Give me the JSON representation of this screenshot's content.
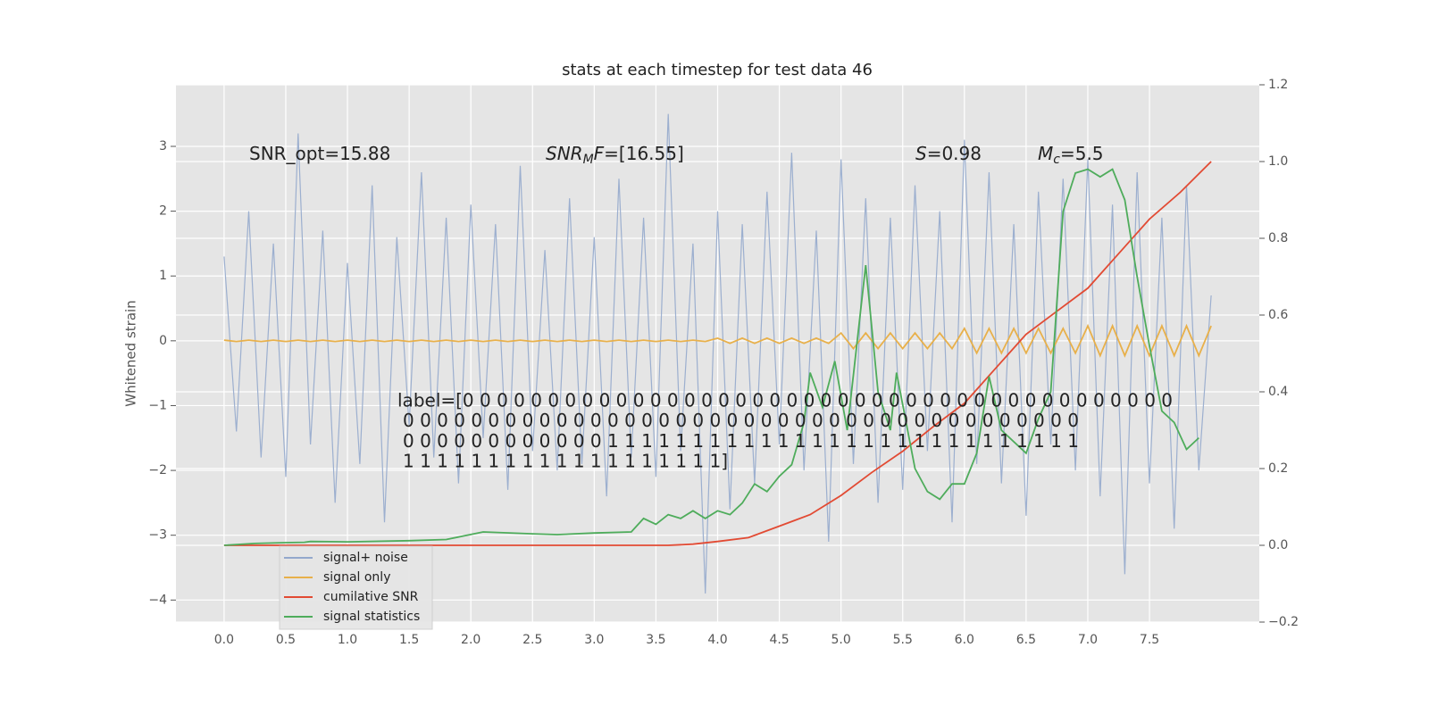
{
  "chart_data": {
    "type": "line",
    "title": "stats at each timestep for test data 46",
    "ylabel": "Whitened strain",
    "xlim": [
      -0.39,
      8.39
    ],
    "ylim": [
      -4.34,
      3.95
    ],
    "y2lim": [
      -0.2,
      1.2
    ],
    "xticks": [
      {
        "value": 0,
        "label": "0.0"
      },
      {
        "value": 0.5,
        "label": "0.5"
      },
      {
        "value": 1,
        "label": "1.0"
      },
      {
        "value": 1.5,
        "label": "1.5"
      },
      {
        "value": 2,
        "label": "2.0"
      },
      {
        "value": 2.5,
        "label": "2.5"
      },
      {
        "value": 3,
        "label": "3.0"
      },
      {
        "value": 3.5,
        "label": "3.5"
      },
      {
        "value": 4,
        "label": "4.0"
      },
      {
        "value": 4.5,
        "label": "4.5"
      },
      {
        "value": 5,
        "label": "5.0"
      },
      {
        "value": 5.5,
        "label": "5.5"
      },
      {
        "value": 6,
        "label": "6.0"
      },
      {
        "value": 6.5,
        "label": "6.5"
      },
      {
        "value": 7,
        "label": "7.0"
      },
      {
        "value": 7.5,
        "label": "7.5"
      }
    ],
    "yticks": [
      {
        "value": -4,
        "label": "−4"
      },
      {
        "value": -3,
        "label": "−3"
      },
      {
        "value": -2,
        "label": "−2"
      },
      {
        "value": -1,
        "label": "−1"
      },
      0,
      1,
      2,
      3
    ],
    "y2ticks": [
      {
        "value": -0.2,
        "label": "−0.2"
      },
      {
        "value": 0,
        "label": "0.0"
      },
      {
        "value": 0.2,
        "label": "0.2"
      },
      {
        "value": 0.4,
        "label": "0.4"
      },
      {
        "value": 0.6,
        "label": "0.6"
      },
      {
        "value": 0.8,
        "label": "0.8"
      },
      {
        "value": 1,
        "label": "1.0"
      },
      {
        "value": 1.2,
        "label": "1.2"
      }
    ],
    "grid": true,
    "legend": "lower left",
    "x": [
      0,
      0.1,
      0.2,
      0.3,
      0.4,
      0.5,
      0.6,
      0.7,
      0.8,
      0.9,
      1,
      1.1,
      1.2,
      1.3,
      1.4,
      1.5,
      1.6,
      1.7,
      1.8,
      1.9,
      2,
      2.1,
      2.2,
      2.3,
      2.4,
      2.5,
      2.6,
      2.7,
      2.8,
      2.9,
      3,
      3.1,
      3.2,
      3.3,
      3.4,
      3.5,
      3.6,
      3.7,
      3.8,
      3.9,
      4,
      4.1,
      4.2,
      4.3,
      4.4,
      4.5,
      4.6,
      4.7,
      4.8,
      4.9,
      5,
      5.1,
      5.2,
      5.3,
      5.4,
      5.5,
      5.6,
      5.7,
      5.8,
      5.9,
      6,
      6.1,
      6.2,
      6.3,
      6.4,
      6.5,
      6.6,
      6.7,
      6.8,
      6.9,
      7,
      7.1,
      7.2,
      7.3,
      7.4,
      7.5,
      7.6,
      7.7,
      7.8,
      7.9,
      8
    ],
    "series": [
      {
        "name": "signal+ noise",
        "color": "#93a8cc",
        "values": [
          1.3,
          -1.4,
          2.0,
          -1.8,
          1.5,
          -2.1,
          3.2,
          -1.6,
          1.7,
          -2.5,
          1.2,
          -1.9,
          2.4,
          -2.8,
          1.6,
          -1.3,
          2.6,
          -1.8,
          1.9,
          -2.2,
          2.1,
          -1.5,
          1.8,
          -2.3,
          2.7,
          -1.7,
          1.4,
          -2.0,
          2.2,
          -1.9,
          1.6,
          -2.4,
          2.5,
          -1.8,
          1.9,
          -2.1,
          3.5,
          -1.7,
          1.5,
          -3.9,
          2.0,
          -2.6,
          1.8,
          -2.2,
          2.3,
          -1.6,
          2.9,
          -2.0,
          1.7,
          -3.1,
          2.8,
          -1.9,
          2.2,
          -2.5,
          1.9,
          -2.3,
          2.4,
          -1.7,
          2.0,
          -2.8,
          3.1,
          -1.9,
          2.6,
          -2.2,
          1.8,
          -2.7,
          2.3,
          -1.6,
          2.5,
          -2.0,
          2.8,
          -2.4,
          2.1,
          -3.6,
          2.6,
          -2.2,
          1.9,
          -2.9,
          2.4,
          -2.0,
          0.7
        ]
      },
      {
        "name": "signal only",
        "color": "#e8b04a",
        "values": [
          0.01,
          -0.01,
          0.01,
          -0.01,
          0.01,
          -0.01,
          0.01,
          -0.01,
          0.01,
          -0.01,
          0.01,
          -0.01,
          0.01,
          -0.01,
          0.01,
          -0.01,
          0.01,
          -0.01,
          0.01,
          -0.01,
          0.01,
          -0.01,
          0.01,
          -0.01,
          0.01,
          -0.01,
          0.01,
          -0.01,
          0.01,
          -0.01,
          0.01,
          -0.01,
          0.01,
          -0.01,
          0.01,
          -0.01,
          0.01,
          -0.01,
          0.01,
          -0.01,
          0.04,
          -0.04,
          0.04,
          -0.04,
          0.04,
          -0.04,
          0.04,
          -0.04,
          0.04,
          -0.04,
          0.12,
          -0.12,
          0.12,
          -0.12,
          0.12,
          -0.12,
          0.12,
          -0.12,
          0.12,
          -0.12,
          0.19,
          -0.19,
          0.19,
          -0.19,
          0.19,
          -0.19,
          0.19,
          -0.19,
          0.19,
          -0.19,
          0.23,
          -0.23,
          0.23,
          -0.23,
          0.23,
          -0.23,
          0.23,
          -0.23,
          0.23,
          -0.23,
          0.23
        ]
      },
      {
        "name": "cumilative SNR",
        "color": "#e24a33",
        "axis": "y2",
        "x": [
          0,
          1,
          2,
          3,
          3.6,
          3.8,
          4.0,
          4.25,
          4.5,
          4.75,
          5.0,
          5.25,
          5.5,
          5.75,
          6.0,
          6.25,
          6.5,
          6.75,
          7.0,
          7.25,
          7.5,
          7.75,
          8.0
        ],
        "values": [
          0,
          0,
          0,
          0,
          0,
          0.003,
          0.01,
          0.02,
          0.05,
          0.08,
          0.13,
          0.19,
          0.245,
          0.31,
          0.37,
          0.46,
          0.55,
          0.61,
          0.67,
          0.76,
          0.85,
          0.92,
          1.0
        ]
      },
      {
        "name": "signal statistics",
        "color": "#4eac5b",
        "axis": "y2",
        "x": [
          0,
          0.25,
          0.5,
          0.65,
          0.7,
          1.0,
          1.5,
          1.8,
          1.95,
          2.1,
          2.5,
          2.7,
          3.0,
          3.3,
          3.4,
          3.5,
          3.6,
          3.7,
          3.8,
          3.9,
          4.0,
          4.1,
          4.2,
          4.3,
          4.4,
          4.5,
          4.6,
          4.7,
          4.75,
          4.85,
          4.95,
          5.05,
          5.2,
          5.3,
          5.4,
          5.45,
          5.6,
          5.7,
          5.8,
          5.9,
          6.0,
          6.1,
          6.2,
          6.3,
          6.5,
          6.6,
          6.7,
          6.8,
          6.9,
          7.0,
          7.1,
          7.2,
          7.3,
          7.4,
          7.5,
          7.6,
          7.7,
          7.8,
          7.9
        ],
        "values": [
          0,
          0.005,
          0.007,
          0.008,
          0.01,
          0.009,
          0.012,
          0.015,
          0.025,
          0.035,
          0.03,
          0.028,
          0.032,
          0.035,
          0.07,
          0.055,
          0.08,
          0.07,
          0.09,
          0.07,
          0.09,
          0.08,
          0.11,
          0.16,
          0.14,
          0.18,
          0.21,
          0.32,
          0.45,
          0.36,
          0.48,
          0.3,
          0.73,
          0.4,
          0.3,
          0.45,
          0.2,
          0.14,
          0.12,
          0.16,
          0.16,
          0.24,
          0.44,
          0.3,
          0.24,
          0.33,
          0.4,
          0.87,
          0.97,
          0.98,
          0.96,
          0.98,
          0.9,
          0.7,
          0.52,
          0.35,
          0.32,
          0.25,
          0.28
        ]
      }
    ],
    "annotations": [
      [
        {
          "text": "SNR_opt=15.88"
        }
      ],
      [
        {
          "text": "SNR",
          "style": "italic"
        },
        {
          "text": "M",
          "style": "italic-sub"
        },
        {
          "text": "F",
          "style": "italic"
        },
        {
          "text": "=[16.55]"
        }
      ],
      [
        {
          "text": "S",
          "style": "italic"
        },
        {
          "text": "=0.98"
        }
      ],
      [
        {
          "text": "M",
          "style": "italic"
        },
        {
          "text": "c",
          "style": "italic-sub"
        },
        {
          "text": "=5.5"
        }
      ]
    ],
    "label_text": [
      "label=[0 0 0 0 0 0 0 0 0 0 0 0 0 0 0 0 0 0 0 0 0 0 0 0 0 0 0 0 0 0 0 0 0 0 0 0 0 0 0 0 0 0",
      "0 0 0 0 0 0 0 0 0 0 0 0 0 0 0 0 0 0 0 0 0 0 0 0 0 0 0 0 0 0 0 0 0 0 0 0 0 0 0 0",
      "0 0 0 0 0 0 0 0 0 0 0 0 1 1 1 1 1 1 1 1 1 1 1 1 1 1 1 1 1 1 1 1 1 1 1 1 1 1 1 1",
      "1 1 1 1 1 1 1 1 1 1 1 1 1 1 1 1 1 1 1]"
    ]
  }
}
